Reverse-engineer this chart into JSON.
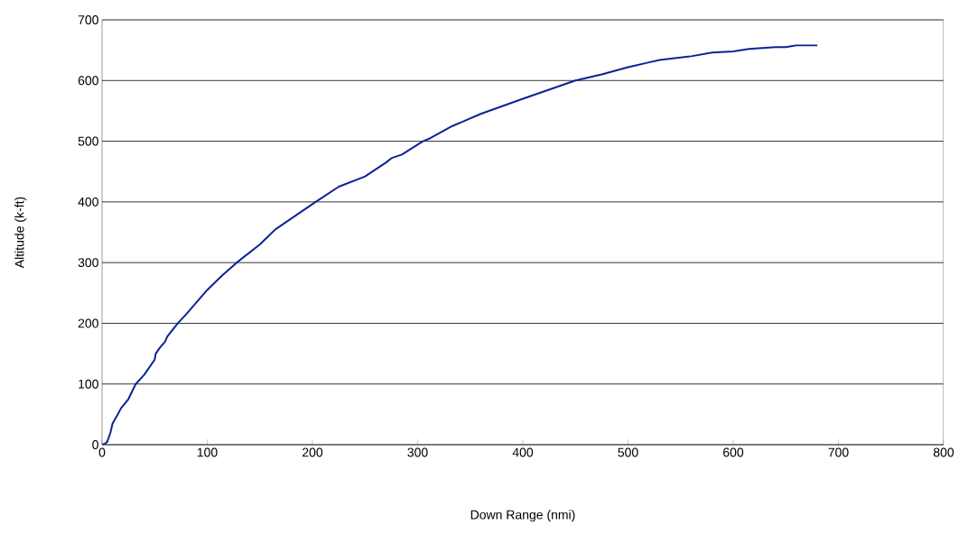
{
  "chart_data": {
    "type": "line",
    "xlabel": "Down Range (nmi)",
    "ylabel": "Altitude (k-ft)",
    "xlim": [
      0,
      800
    ],
    "xticks": [
      0,
      100,
      200,
      300,
      400,
      500,
      600,
      700,
      800
    ],
    "ylim": [
      0,
      700
    ],
    "yticks": [
      0,
      100,
      200,
      300,
      400,
      500,
      600,
      700
    ],
    "grid": "y",
    "marker": "none",
    "line_style": "solid",
    "series": [
      {
        "color": "#0a2396",
        "x": [
          0,
          3,
          5,
          8,
          10,
          15,
          18,
          25,
          32,
          40,
          50,
          51,
          55,
          60,
          62,
          72,
          80,
          100,
          115,
          128,
          150,
          165,
          203,
          225,
          250,
          270,
          275,
          285,
          305,
          312,
          333,
          360,
          400,
          450,
          475,
          500,
          520,
          530,
          560,
          580,
          600,
          615,
          640,
          650,
          660,
          680
        ],
        "values": [
          0,
          2,
          5,
          20,
          35,
          50,
          60,
          75,
          100,
          115,
          140,
          150,
          160,
          170,
          178,
          200,
          215,
          255,
          280,
          300,
          330,
          355,
          400,
          425,
          442,
          465,
          472,
          478,
          500,
          505,
          525,
          545,
          570,
          600,
          610,
          622,
          630,
          634,
          640,
          646,
          648,
          652,
          655,
          655,
          658,
          658
        ]
      }
    ]
  }
}
